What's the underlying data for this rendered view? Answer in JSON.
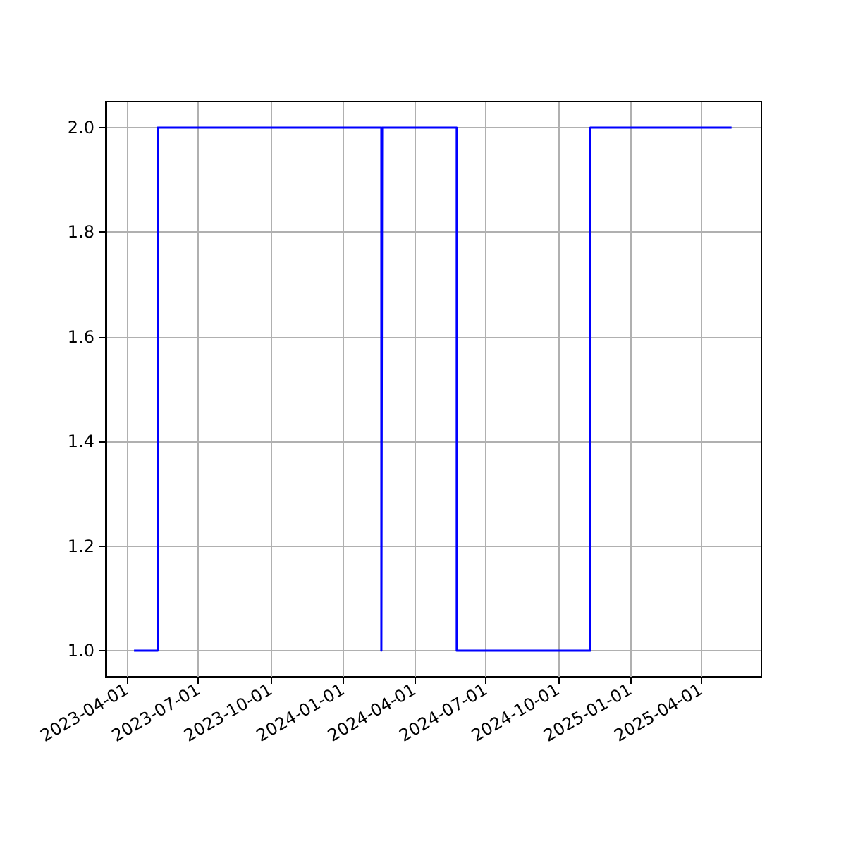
{
  "chart_data": {
    "type": "step",
    "x": [
      "2023-04-10",
      "2023-05-10",
      "2024-02-19",
      "2024-02-20",
      "2024-05-25",
      "2024-11-11",
      "2025-05-10"
    ],
    "series": [
      {
        "color": "#0000ff",
        "values": [
          1,
          2,
          1,
          2,
          1,
          2,
          2
        ]
      }
    ],
    "xlim": [
      "2023-03-05",
      "2025-06-17"
    ],
    "xticks": [
      "2023-04-01",
      "2023-07-01",
      "2023-10-01",
      "2024-01-01",
      "2024-04-01",
      "2024-07-01",
      "2024-10-01",
      "2025-01-01",
      "2025-04-01"
    ],
    "ylim": [
      0.95,
      2.05
    ],
    "yticks": [
      {
        "value": 1,
        "label": "1.0"
      },
      {
        "value": 1.2,
        "label": "1.2"
      },
      {
        "value": 1.4,
        "label": "1.4"
      },
      {
        "value": 1.6,
        "label": "1.6"
      },
      {
        "value": 1.8,
        "label": "1.8"
      },
      {
        "value": 2,
        "label": "2.0"
      }
    ],
    "grid": true,
    "marker": "none",
    "line_style": "solid"
  }
}
